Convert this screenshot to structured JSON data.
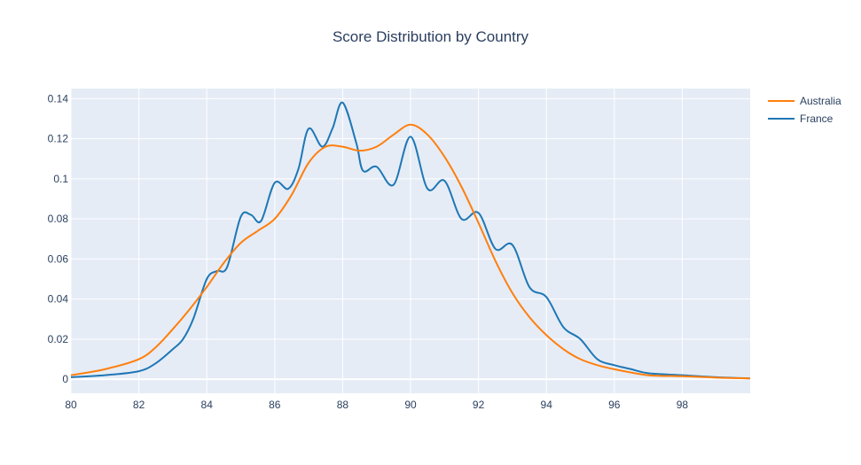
{
  "chart_data": {
    "type": "line",
    "title": "Score Distribution by Country",
    "xlabel": "",
    "ylabel": "",
    "xlim": [
      80,
      100
    ],
    "ylim": [
      -0.007,
      0.145
    ],
    "x_ticks": [
      80,
      82,
      84,
      86,
      88,
      90,
      92,
      94,
      96,
      98
    ],
    "y_ticks": [
      0,
      0.02,
      0.04,
      0.06,
      0.08,
      0.1,
      0.12,
      0.14
    ],
    "grid": true,
    "plot_background": "#e5ecf6",
    "legend_position": "top-right",
    "series": [
      {
        "name": "Australia",
        "color": "#ff7f0e",
        "points": [
          [
            80,
            0.002
          ],
          [
            81,
            0.005
          ],
          [
            82,
            0.01
          ],
          [
            82.5,
            0.016
          ],
          [
            83,
            0.025
          ],
          [
            83.5,
            0.035
          ],
          [
            84,
            0.046
          ],
          [
            84.5,
            0.058
          ],
          [
            85,
            0.068
          ],
          [
            85.5,
            0.074
          ],
          [
            86,
            0.08
          ],
          [
            86.5,
            0.092
          ],
          [
            87,
            0.108
          ],
          [
            87.5,
            0.116
          ],
          [
            88,
            0.116
          ],
          [
            88.5,
            0.114
          ],
          [
            89,
            0.116
          ],
          [
            89.5,
            0.122
          ],
          [
            90,
            0.127
          ],
          [
            90.5,
            0.122
          ],
          [
            91,
            0.111
          ],
          [
            91.5,
            0.096
          ],
          [
            92,
            0.078
          ],
          [
            92.5,
            0.059
          ],
          [
            93,
            0.043
          ],
          [
            93.5,
            0.031
          ],
          [
            94,
            0.022
          ],
          [
            94.5,
            0.015
          ],
          [
            95,
            0.01
          ],
          [
            95.5,
            0.007
          ],
          [
            96,
            0.005
          ],
          [
            97,
            0.002
          ],
          [
            98,
            0.0015
          ],
          [
            99,
            0.0008
          ],
          [
            100,
            0.0004
          ]
        ]
      },
      {
        "name": "France",
        "color": "#1f77b4",
        "points": [
          [
            80,
            0.001
          ],
          [
            81,
            0.002
          ],
          [
            82,
            0.004
          ],
          [
            82.5,
            0.008
          ],
          [
            83,
            0.015
          ],
          [
            83.3,
            0.02
          ],
          [
            83.6,
            0.03
          ],
          [
            84,
            0.05
          ],
          [
            84.3,
            0.054
          ],
          [
            84.6,
            0.056
          ],
          [
            85,
            0.081
          ],
          [
            85.3,
            0.082
          ],
          [
            85.6,
            0.079
          ],
          [
            86,
            0.098
          ],
          [
            86.4,
            0.095
          ],
          [
            86.7,
            0.105
          ],
          [
            87,
            0.125
          ],
          [
            87.4,
            0.116
          ],
          [
            87.7,
            0.125
          ],
          [
            88,
            0.138
          ],
          [
            88.4,
            0.118
          ],
          [
            88.6,
            0.104
          ],
          [
            89,
            0.106
          ],
          [
            89.5,
            0.097
          ],
          [
            90,
            0.121
          ],
          [
            90.5,
            0.095
          ],
          [
            91,
            0.099
          ],
          [
            91.5,
            0.08
          ],
          [
            92,
            0.083
          ],
          [
            92.5,
            0.065
          ],
          [
            93,
            0.067
          ],
          [
            93.5,
            0.046
          ],
          [
            94,
            0.041
          ],
          [
            94.5,
            0.026
          ],
          [
            95,
            0.02
          ],
          [
            95.5,
            0.01
          ],
          [
            96,
            0.007
          ],
          [
            96.5,
            0.005
          ],
          [
            97,
            0.003
          ],
          [
            98,
            0.002
          ],
          [
            99,
            0.001
          ],
          [
            100,
            0.0004
          ]
        ]
      }
    ]
  }
}
